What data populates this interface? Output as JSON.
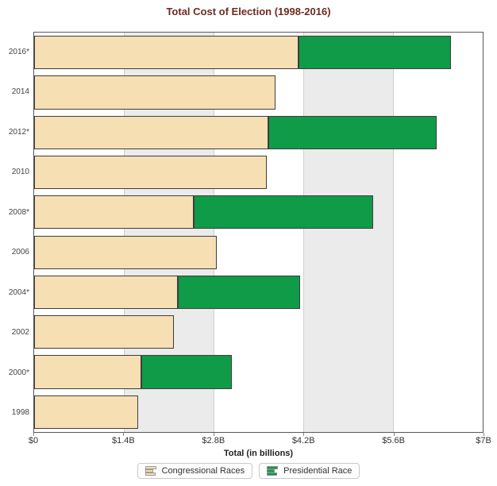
{
  "title": "Total Cost of Election (1998-2016)",
  "chart_data": {
    "type": "bar",
    "orientation": "horizontal",
    "stacked": true,
    "title": "Total Cost of Election (1998-2016)",
    "xlabel": "Total (in billions)",
    "ylabel": "",
    "xlim": [
      0,
      7
    ],
    "grid": true,
    "legend_position": "bottom",
    "categories": [
      "2016*",
      "2014",
      "2012*",
      "2010",
      "2008*",
      "2006",
      "2004*",
      "2002",
      "2000*",
      "1998"
    ],
    "series": [
      {
        "name": "Congressional Races",
        "color": "#F6DFB3",
        "values": [
          4.12,
          3.77,
          3.66,
          3.63,
          2.49,
          2.85,
          2.24,
          2.18,
          1.67,
          1.62
        ]
      },
      {
        "name": "Presidential Race",
        "color": "#0F9B48",
        "values": [
          2.39,
          0,
          2.62,
          0,
          2.8,
          0,
          1.91,
          0,
          1.41,
          0
        ]
      }
    ],
    "x_ticks": [
      {
        "value": 0,
        "label": "$0"
      },
      {
        "value": 1.4,
        "label": "$1.4B"
      },
      {
        "value": 2.8,
        "label": "$2.8B"
      },
      {
        "value": 4.2,
        "label": "$4.2B"
      },
      {
        "value": 5.6,
        "label": "$5.6B"
      },
      {
        "value": 7,
        "label": "$7B"
      }
    ],
    "band_intervals": [
      [
        1.4,
        2.8
      ],
      [
        4.2,
        5.6
      ]
    ],
    "band_color": "#EBEBEB"
  },
  "colors": {
    "title": "#6E2B20",
    "congressional": "#F6DFB3",
    "presidential": "#0F9B48",
    "bar_border": "#3E3E3E",
    "gridline": "#CFCFCF"
  }
}
